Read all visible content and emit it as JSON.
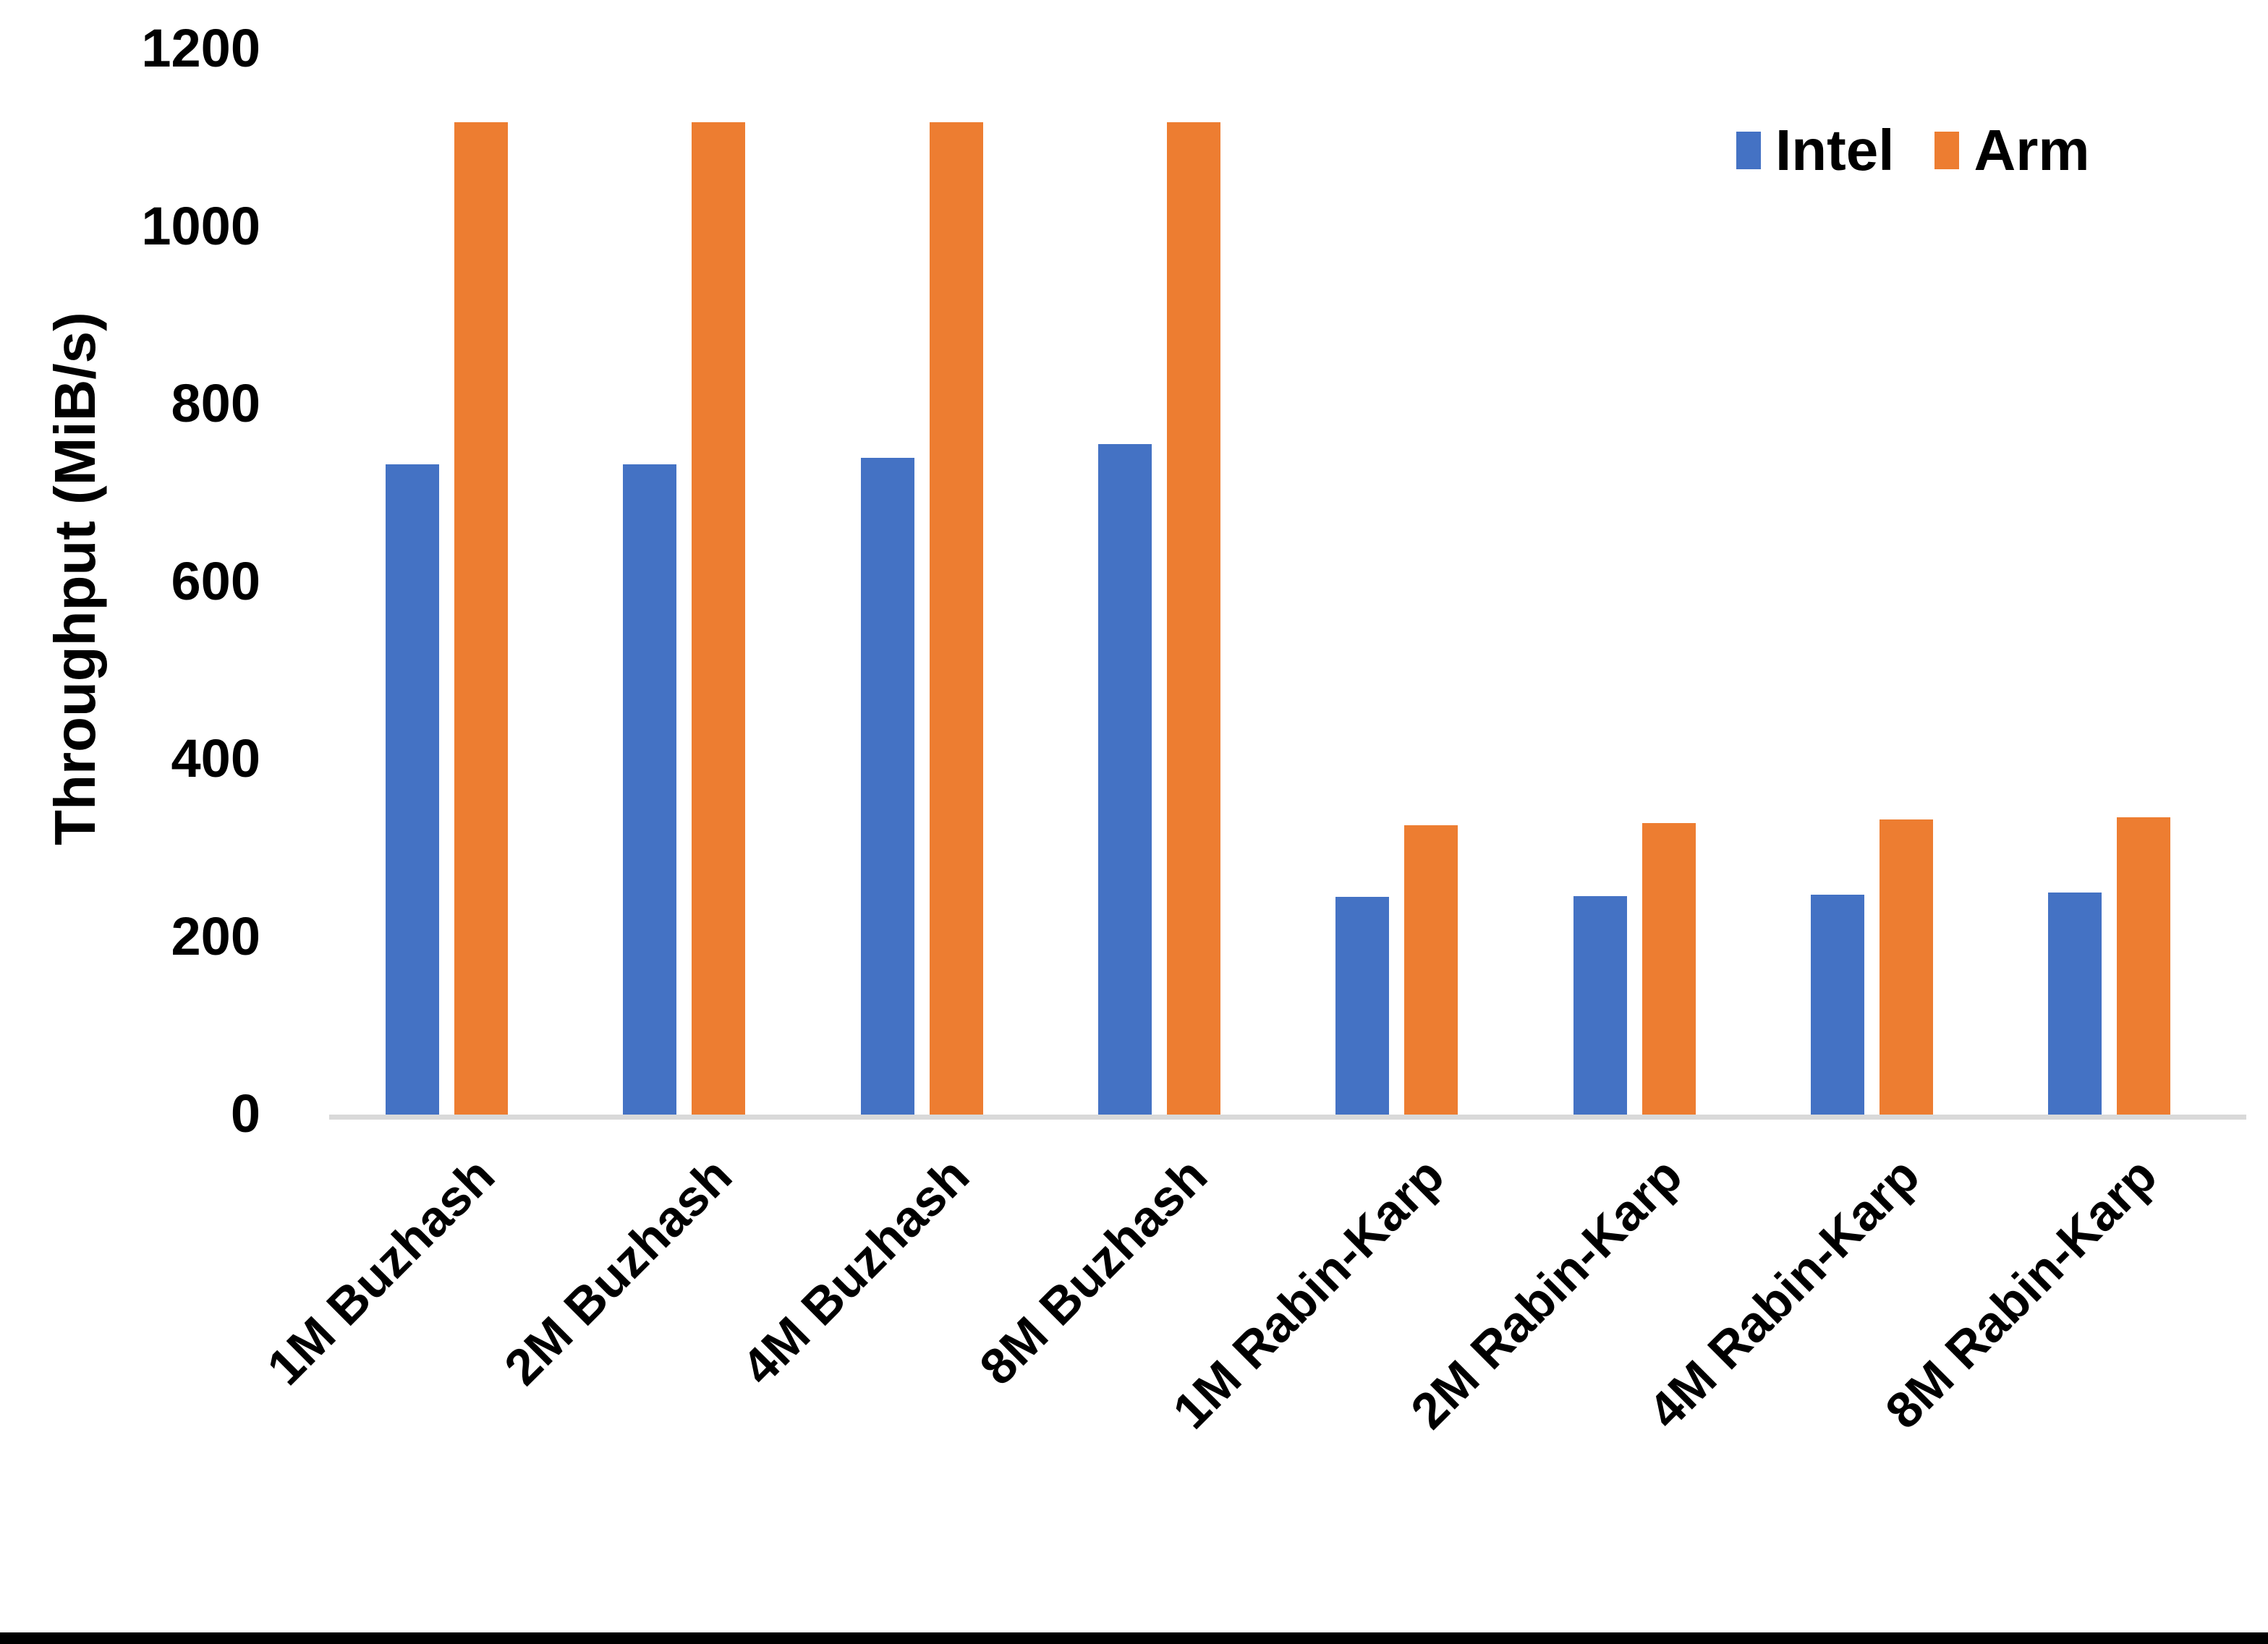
{
  "chart_data": {
    "type": "bar",
    "title": "",
    "xlabel": "",
    "ylabel": "Throughput (MiB/s)",
    "ylim": [
      0,
      1200
    ],
    "yticks": [
      0,
      200,
      400,
      600,
      800,
      1000,
      1200
    ],
    "grid": false,
    "legend_position": "top-right",
    "categories": [
      "1M Buzhash",
      "2M Buzhash",
      "4M Buzhash",
      "8M Buzhash",
      "1M Rabin-Karp",
      "2M Rabin-Karp",
      "4M Rabin-Karp",
      "8M Rabin-Karp"
    ],
    "series": [
      {
        "name": "Intel",
        "color": "#4472C4",
        "values": [
          732,
          732,
          740,
          755,
          245,
          246,
          248,
          250
        ]
      },
      {
        "name": "Arm",
        "color": "#ED7D31",
        "values": [
          1118,
          1118,
          1118,
          1118,
          326,
          328,
          332,
          335
        ]
      }
    ]
  },
  "colors": {
    "background": "#FFFFFF",
    "text": "#000000",
    "axis_line": "#D9D9D9",
    "bottom_rule": "#000000"
  }
}
